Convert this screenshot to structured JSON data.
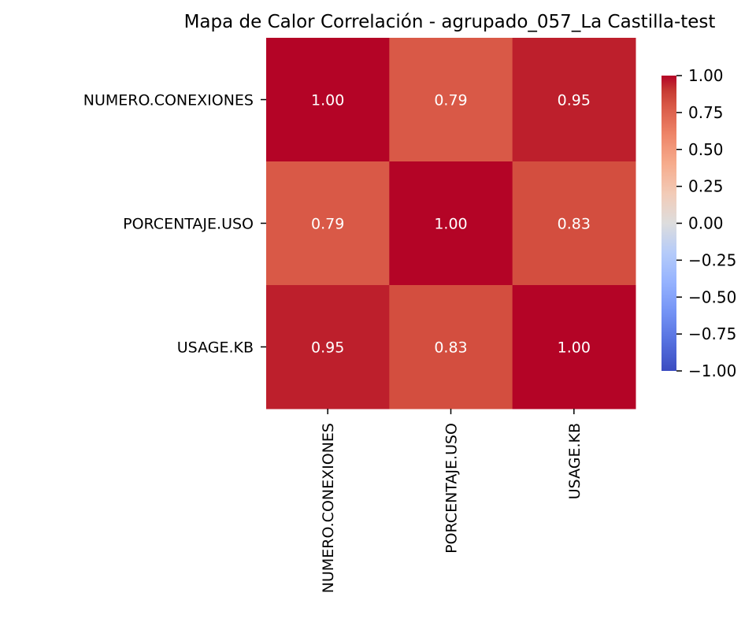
{
  "chart_data": {
    "type": "heatmap",
    "title": "Mapa de Calor Correlación - agrupado_057_La Castilla-test",
    "x_categories": [
      "NUMERO.CONEXIONES",
      "PORCENTAJE.USO",
      "USAGE.KB"
    ],
    "y_categories": [
      "NUMERO.CONEXIONES",
      "PORCENTAJE.USO",
      "USAGE.KB"
    ],
    "values": [
      [
        1.0,
        0.79,
        0.95
      ],
      [
        0.79,
        1.0,
        0.83
      ],
      [
        0.95,
        0.83,
        1.0
      ]
    ],
    "value_format": "0.00",
    "colormap": "coolwarm",
    "vmin": -1.0,
    "vmax": 1.0,
    "colorbar": {
      "ticks": [
        1.0,
        0.75,
        0.5,
        0.25,
        0.0,
        -0.25,
        -0.5,
        -0.75,
        -1.0
      ],
      "tick_labels": [
        "1.00",
        "0.75",
        "0.50",
        "0.25",
        "0.00",
        "−0.25",
        "−0.50",
        "−0.75",
        "−1.00"
      ]
    },
    "xlabel": "",
    "ylabel": ""
  }
}
